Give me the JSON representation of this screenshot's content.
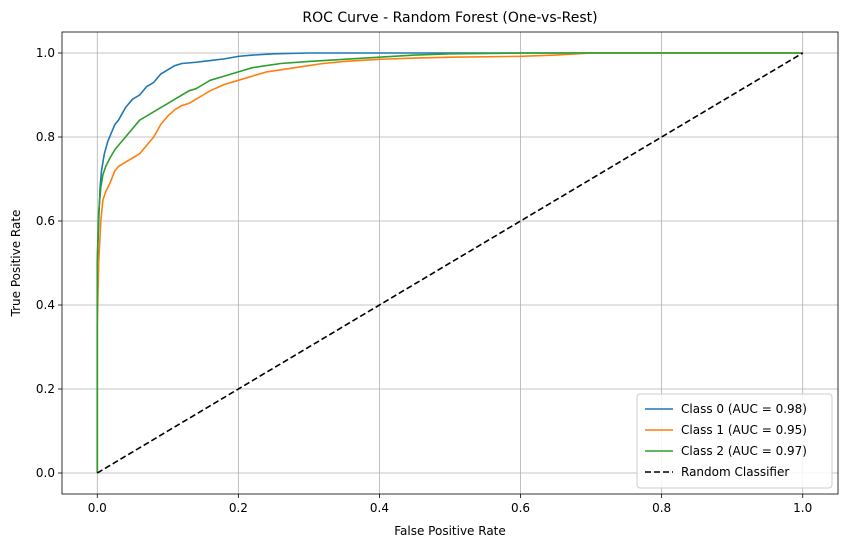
{
  "chart_data": {
    "type": "line",
    "title": "ROC Curve - Random Forest (One-vs-Rest)",
    "xlabel": "False Positive Rate",
    "ylabel": "True Positive Rate",
    "xlim": [
      -0.05,
      1.05
    ],
    "ylim": [
      -0.05,
      1.05
    ],
    "xticks": [
      0.0,
      0.2,
      0.4,
      0.6,
      0.8,
      1.0
    ],
    "yticks": [
      0.0,
      0.2,
      0.4,
      0.6,
      0.8,
      1.0
    ],
    "xtick_labels": [
      "0.0",
      "0.2",
      "0.4",
      "0.6",
      "0.8",
      "1.0"
    ],
    "ytick_labels": [
      "0.0",
      "0.2",
      "0.4",
      "0.6",
      "0.8",
      "1.0"
    ],
    "grid": true,
    "legend_position": "lower-right",
    "series": [
      {
        "name": "Class 0 (AUC = 0.98)",
        "color": "#1f77b4",
        "style": "solid",
        "x": [
          0.0,
          0.0,
          0.002,
          0.004,
          0.006,
          0.008,
          0.01,
          0.015,
          0.02,
          0.025,
          0.03,
          0.04,
          0.05,
          0.06,
          0.07,
          0.08,
          0.09,
          0.1,
          0.11,
          0.12,
          0.14,
          0.16,
          0.18,
          0.2,
          0.22,
          0.25,
          0.3,
          0.35,
          0.4,
          0.5,
          0.6,
          0.8,
          1.0
        ],
        "y": [
          0.0,
          0.5,
          0.6,
          0.68,
          0.72,
          0.74,
          0.76,
          0.79,
          0.81,
          0.83,
          0.84,
          0.87,
          0.89,
          0.9,
          0.92,
          0.93,
          0.95,
          0.96,
          0.97,
          0.975,
          0.978,
          0.982,
          0.986,
          0.992,
          0.995,
          0.998,
          1.0,
          1.0,
          1.0,
          1.0,
          1.0,
          1.0,
          1.0
        ]
      },
      {
        "name": "Class 1 (AUC = 0.95)",
        "color": "#ff7f0e",
        "style": "solid",
        "x": [
          0.0,
          0.0,
          0.002,
          0.005,
          0.008,
          0.012,
          0.018,
          0.025,
          0.03,
          0.04,
          0.05,
          0.06,
          0.07,
          0.08,
          0.09,
          0.1,
          0.11,
          0.12,
          0.13,
          0.14,
          0.15,
          0.16,
          0.18,
          0.2,
          0.22,
          0.24,
          0.26,
          0.28,
          0.3,
          0.32,
          0.35,
          0.4,
          0.45,
          0.5,
          0.6,
          0.65,
          0.7,
          1.0
        ],
        "y": [
          0.0,
          0.35,
          0.5,
          0.6,
          0.65,
          0.67,
          0.69,
          0.72,
          0.73,
          0.74,
          0.75,
          0.76,
          0.78,
          0.8,
          0.83,
          0.85,
          0.865,
          0.875,
          0.88,
          0.89,
          0.9,
          0.91,
          0.925,
          0.935,
          0.945,
          0.955,
          0.96,
          0.965,
          0.97,
          0.975,
          0.98,
          0.985,
          0.988,
          0.99,
          0.992,
          0.995,
          1.0,
          1.0
        ]
      },
      {
        "name": "Class 2 (AUC = 0.97)",
        "color": "#2ca02c",
        "style": "solid",
        "x": [
          0.0,
          0.0,
          0.002,
          0.005,
          0.008,
          0.012,
          0.018,
          0.025,
          0.03,
          0.04,
          0.05,
          0.06,
          0.07,
          0.08,
          0.09,
          0.1,
          0.11,
          0.12,
          0.13,
          0.14,
          0.15,
          0.16,
          0.18,
          0.2,
          0.22,
          0.24,
          0.26,
          0.3,
          0.35,
          0.4,
          0.45,
          0.5,
          0.6,
          0.7,
          1.0
        ],
        "y": [
          0.0,
          0.5,
          0.62,
          0.68,
          0.71,
          0.73,
          0.75,
          0.77,
          0.78,
          0.8,
          0.82,
          0.84,
          0.85,
          0.86,
          0.87,
          0.88,
          0.89,
          0.9,
          0.91,
          0.915,
          0.925,
          0.935,
          0.945,
          0.955,
          0.965,
          0.97,
          0.975,
          0.98,
          0.985,
          0.99,
          0.995,
          0.998,
          1.0,
          1.0,
          1.0
        ]
      },
      {
        "name": "Random Classifier",
        "color": "#000000",
        "style": "dashed",
        "x": [
          0.0,
          1.0
        ],
        "y": [
          0.0,
          1.0
        ]
      }
    ]
  }
}
